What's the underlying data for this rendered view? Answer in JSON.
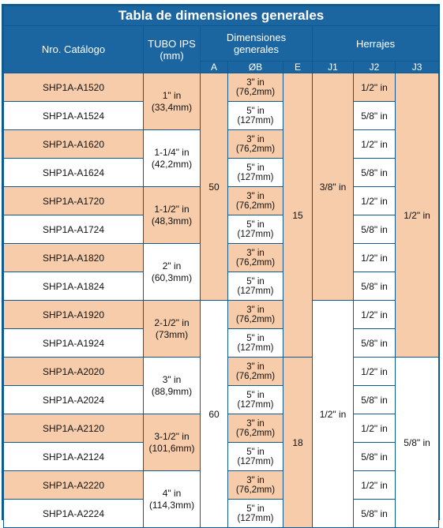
{
  "title": "Tabla de dimensiones generales",
  "headers": {
    "catalog": "Nro. Catálogo",
    "tubo": "TUBO IPS (mm)",
    "dimensiones": "Dimensiones generales",
    "herrajes": "Herrajes",
    "a": "A",
    "ob": "ØB",
    "e": "E",
    "j1": "J1",
    "j2": "J2",
    "j3": "J3"
  },
  "rows": [
    {
      "catalog": "SHP1A-A1520",
      "b1": "3\" in",
      "b2": "(76,2mm)",
      "j2": "1/2\" in"
    },
    {
      "catalog": "SHP1A-A1524",
      "b1": "5\" in",
      "b2": "(127mm)",
      "j2": "5/8\" in"
    },
    {
      "catalog": "SHP1A-A1620",
      "b1": "3\" in",
      "b2": "(76,2mm)",
      "j2": "1/2\" in"
    },
    {
      "catalog": "SHP1A-A1624",
      "b1": "5\" in",
      "b2": "(127mm)",
      "j2": "5/8\" in"
    },
    {
      "catalog": "SHP1A-A1720",
      "b1": "3\" in",
      "b2": "(76,2mm)",
      "j2": "1/2\" in"
    },
    {
      "catalog": "SHP1A-A1724",
      "b1": "5\" in",
      "b2": "(127mm)",
      "j2": "5/8\" in"
    },
    {
      "catalog": "SHP1A-A1820",
      "b1": "3\" in",
      "b2": "(76,2mm)",
      "j2": "1/2\" in"
    },
    {
      "catalog": "SHP1A-A1824",
      "b1": "5\" in",
      "b2": "(127mm)",
      "j2": "5/8\" in"
    },
    {
      "catalog": "SHP1A-A1920",
      "b1": "3\" in",
      "b2": "(76,2mm)",
      "j2": "1/2\" in"
    },
    {
      "catalog": "SHP1A-A1924",
      "b1": "5\" in",
      "b2": "(127mm)",
      "j2": "5/8\" in"
    },
    {
      "catalog": "SHP1A-A2020",
      "b1": "3\" in",
      "b2": "(76,2mm)",
      "j2": "1/2\" in"
    },
    {
      "catalog": "SHP1A-A2024",
      "b1": "5\" in",
      "b2": "(127mm)",
      "j2": "5/8\" in"
    },
    {
      "catalog": "SHP1A-A2120",
      "b1": "3\" in",
      "b2": "(76,2mm)",
      "j2": "1/2\" in"
    },
    {
      "catalog": "SHP1A-A2124",
      "b1": "5\" in",
      "b2": "(127mm)",
      "j2": "5/8\" in"
    },
    {
      "catalog": "SHP1A-A2220",
      "b1": "3\" in",
      "b2": "(76,2mm)",
      "j2": "1/2\" in"
    },
    {
      "catalog": "SHP1A-A2224",
      "b1": "5\" in",
      "b2": "(127mm)",
      "j2": "5/8\" in"
    }
  ],
  "tubo": [
    {
      "l1": "1\" in",
      "l2": "(33,4mm)"
    },
    {
      "l1": "1-1/4\" in",
      "l2": "(42,2mm)"
    },
    {
      "l1": "1-1/2\" in",
      "l2": "(48,3mm)"
    },
    {
      "l1": "2\" in",
      "l2": "(60,3mm)"
    },
    {
      "l1": "2-1/2\" in",
      "l2": "(73mm)"
    },
    {
      "l1": "3\" in",
      "l2": "(88,9mm)"
    },
    {
      "l1": "3-1/2\" in",
      "l2": "(101,6mm)"
    },
    {
      "l1": "4\" in",
      "l2": "(114,3mm)"
    }
  ],
  "a_values": [
    "50",
    "60"
  ],
  "e_values": [
    "15",
    "18"
  ],
  "j1_values": [
    "3/8\" in",
    "1/2\" in"
  ],
  "j3_values": [
    "1/2\" in",
    "5/8\" in"
  ],
  "colors": {
    "header_blue": "#1b65a0",
    "border_blue": "#0f5a8f",
    "peach": "#f6ccaa",
    "white": "#ffffff"
  }
}
